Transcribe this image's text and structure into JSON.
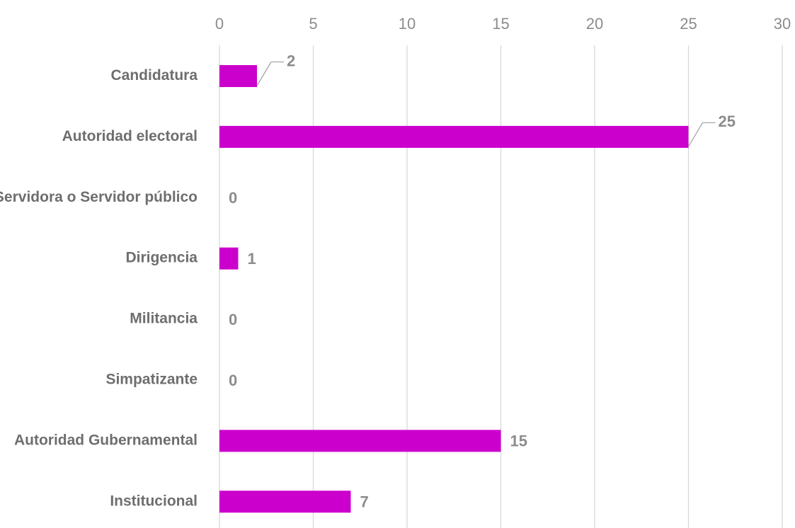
{
  "chart_data": {
    "type": "bar",
    "orientation": "horizontal",
    "categories": [
      "Candidatura",
      "Autoridad electoral",
      "Servidora o Servidor público",
      "Dirigencia",
      "Militancia",
      "Simpatizante",
      "Autoridad Gubernamental",
      "Institucional"
    ],
    "values": [
      2,
      25,
      0,
      1,
      0,
      0,
      15,
      7
    ],
    "data_labels": [
      "2",
      "25",
      "0",
      "1",
      "0",
      "0",
      "15",
      "7"
    ],
    "xlim": [
      0,
      30
    ],
    "x_ticks": [
      0,
      5,
      10,
      15,
      20,
      25,
      30
    ],
    "x_axis_position": "top",
    "grid": true,
    "legend": "none",
    "title": "",
    "xlabel": "",
    "ylabel": "",
    "colors": {
      "bar": "#CC00CC",
      "grid": "#D9D9D9",
      "tick_text": "#8C8C8C",
      "category_text": "#6E6E6E",
      "data_label_text": "#8C8C8C"
    }
  }
}
